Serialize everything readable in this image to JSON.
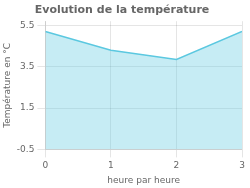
{
  "chart_data": {
    "type": "area",
    "title": "Evolution de la température",
    "xlabel": "heure par heure",
    "ylabel": "Température en °C",
    "x": [
      0,
      1,
      2,
      3
    ],
    "values": [
      5.2,
      4.3,
      3.85,
      5.2
    ],
    "color": "#5bc8e0",
    "xlim": [
      0,
      3
    ],
    "ylim": [
      -0.5,
      5.7
    ],
    "xticks": [
      0,
      1,
      2,
      3
    ],
    "yticks": [
      -0.5,
      1.5,
      3.5,
      5.5
    ],
    "grid": true
  }
}
